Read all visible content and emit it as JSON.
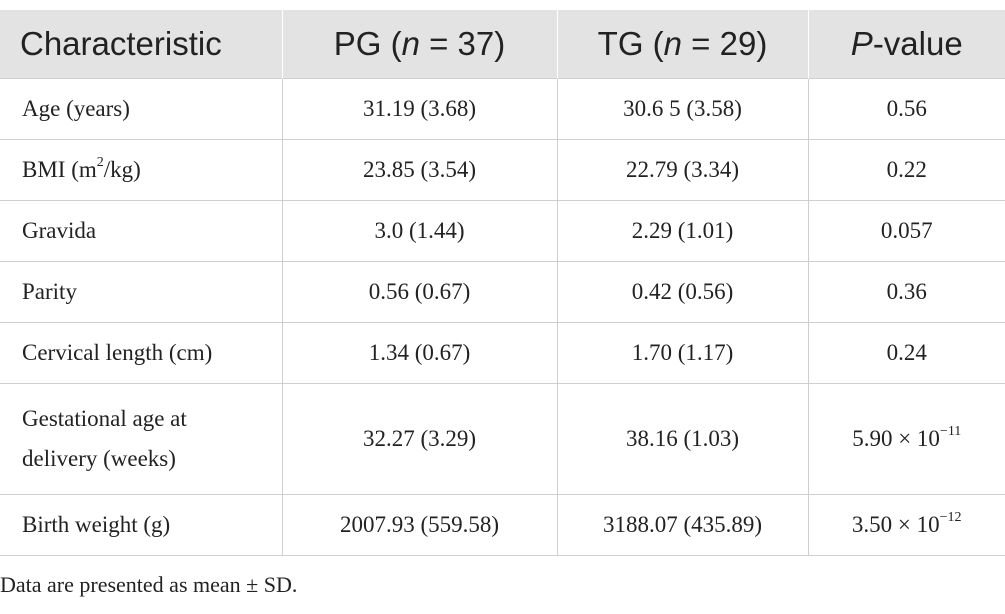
{
  "table": {
    "headers": [
      {
        "label": "Characteristic",
        "italic_prefix": "",
        "suffix": ""
      },
      {
        "label": "PG (",
        "italic_prefix": "n",
        "suffix": " = 37)"
      },
      {
        "label": "TG (",
        "italic_prefix": "n",
        "suffix": " = 29)"
      },
      {
        "label": "",
        "italic_prefix": "P",
        "suffix": "-value"
      }
    ],
    "rows": [
      {
        "characteristic": "Age (years)",
        "pg": "31.19 (3.68)",
        "tg": "30.6 5 (3.58)",
        "p": "0.56"
      },
      {
        "characteristic_pre": "BMI (m",
        "characteristic_sup": "2",
        "characteristic_post": "/kg)",
        "pg": "23.85 (3.54)",
        "tg": "22.79 (3.34)",
        "p": "0.22"
      },
      {
        "characteristic": "Gravida",
        "pg": "3.0 (1.44)",
        "tg": "2.29 (1.01)",
        "p": "0.057"
      },
      {
        "characteristic": "Parity",
        "pg": "0.56 (0.67)",
        "tg": "0.42 (0.56)",
        "p": "0.36"
      },
      {
        "characteristic": "Cervical length (cm)",
        "pg": "1.34 (0.67)",
        "tg": "1.70 (1.17)",
        "p": "0.24"
      },
      {
        "characteristic_line1": "Gestational age at",
        "characteristic_line2": "delivery (weeks)",
        "pg": "32.27 (3.29)",
        "tg": "38.16 (1.03)",
        "p_base": "5.90 × 10",
        "p_exp": "−11"
      },
      {
        "characteristic": "Birth weight (g)",
        "pg": "2007.93 (559.58)",
        "tg": "3188.07 (435.89)",
        "p_base": "3.50 × 10",
        "p_exp": "−12"
      }
    ]
  },
  "footnote": "Data are presented as mean ± SD."
}
